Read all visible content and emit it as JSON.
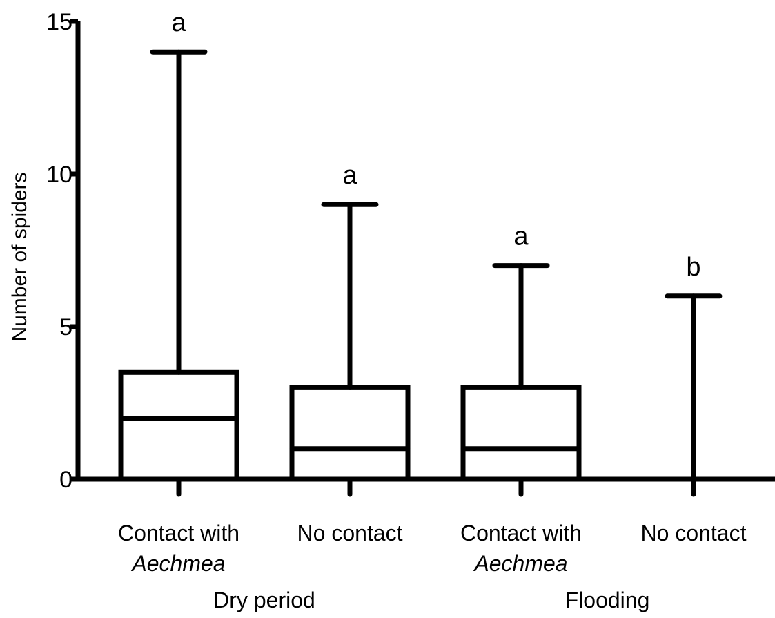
{
  "chart_data": {
    "type": "box",
    "ylabel": "Number of spiders",
    "ylim": [
      0,
      15
    ],
    "yticks": [
      "0",
      "5",
      "10",
      "15"
    ],
    "groups": [
      {
        "label": "Dry period",
        "span": [
          0,
          1
        ]
      },
      {
        "label": "Flooding",
        "span": [
          2,
          3
        ]
      }
    ],
    "categories": [
      {
        "line1": "Contact with",
        "line2": "Aechmea",
        "min": 0,
        "q1": 0,
        "median": 2,
        "q3": 3.5,
        "max": 14,
        "significance": "a"
      },
      {
        "line1": "No contact",
        "line2": "",
        "min": 0,
        "q1": 0,
        "median": 1,
        "q3": 3,
        "max": 9,
        "significance": "a"
      },
      {
        "line1": "Contact with",
        "line2": "Aechmea",
        "min": 0,
        "q1": 0,
        "median": 1,
        "q3": 3,
        "max": 7,
        "significance": "a"
      },
      {
        "line1": "No contact",
        "line2": "",
        "min": 0,
        "q1": 0,
        "median": 0,
        "q3": 0,
        "max": 6,
        "significance": "b"
      }
    ]
  }
}
